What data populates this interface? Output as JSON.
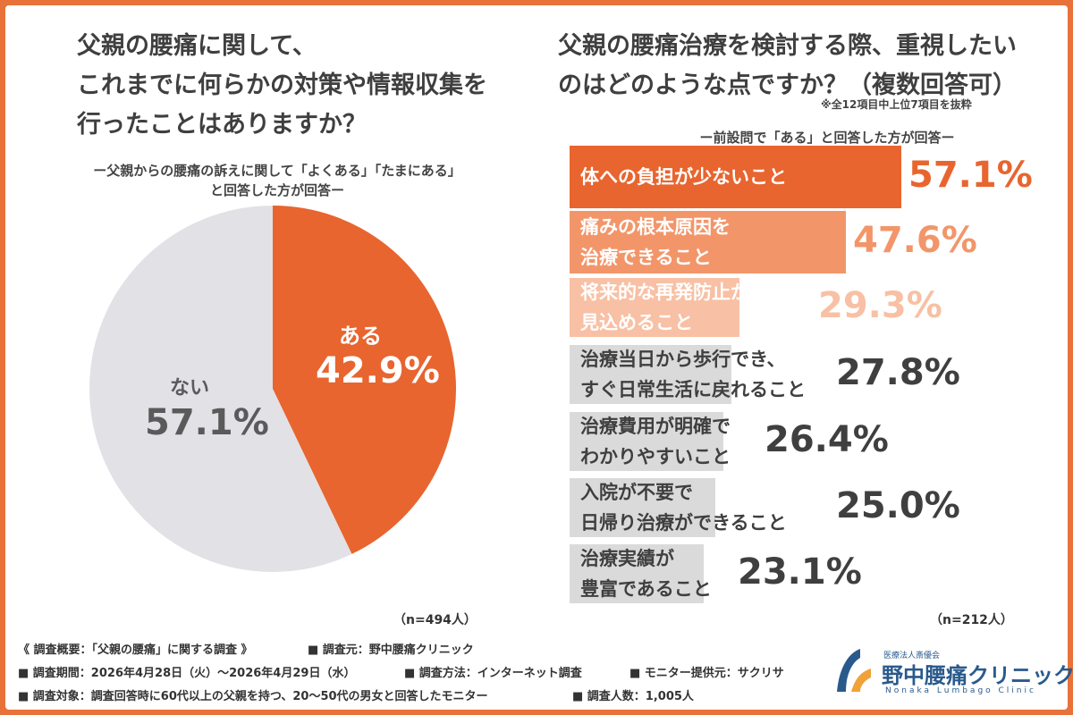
{
  "colors": {
    "accent": "#e8652f",
    "orange_mid": "#f2966a",
    "orange_light": "#f8c0a4",
    "gray_bar": "#dadada",
    "pie_gray": "#e2e1e6",
    "text_dark": "#3f3f3f",
    "logo_blue": "#2a5a8c"
  },
  "left": {
    "title_lines": [
      "父親の腰痛に関して、",
      "これまでに何らかの対策や情報収集を",
      "行ったことはありますか？"
    ],
    "sub_lines": [
      "ー父親からの腰痛の訴えに関して「よくある」「たまにある」",
      "と回答した方が回答ー"
    ],
    "n": "（n=494人）"
  },
  "right": {
    "title_lines": [
      "父親の腰痛治療を検討する際、重視したい",
      "のはどのような点ですか？（複数回答可）"
    ],
    "note": "※全12項目中上位7項目を抜粋",
    "sub": "ー前設問で「ある」と回答した方が回答ー",
    "n": "（n=212人）"
  },
  "chart_data": [
    {
      "type": "pie",
      "slices": [
        {
          "label": "ある",
          "value": 42.9,
          "value_label": "42.9%",
          "color": "#e8652f"
        },
        {
          "label": "ない",
          "value": 57.1,
          "value_label": "57.1%",
          "color": "#e2e1e6"
        }
      ]
    },
    {
      "type": "bar",
      "orientation": "horizontal",
      "categories": [
        [
          "体への負担が少ないこと"
        ],
        [
          "痛みの根本原因を",
          "治療できること"
        ],
        [
          "将来的な再発防止が",
          "見込めること"
        ],
        [
          "治療当日から歩行でき、",
          "すぐ日常生活に戻れること"
        ],
        [
          "治療費用が明確で",
          "わかりやすいこと"
        ],
        [
          "入院が不要で",
          "日帰り治療ができること"
        ],
        [
          "治療実績が",
          "豊富であること"
        ]
      ],
      "values": [
        57.1,
        47.6,
        29.3,
        27.8,
        26.4,
        25.0,
        23.1
      ],
      "value_labels": [
        "57.1%",
        "47.6%",
        "29.3%",
        "27.8%",
        "26.4%",
        "25.0%",
        "23.1%"
      ]
    }
  ],
  "footer": {
    "line1_a": "《 調査概要：「父親の腰痛」に関する調査 》",
    "line1_b": "■ 調査元：野中腰痛クリニック",
    "line2_a": "■ 調査期間：2026年4月28日（火）～2026年4月29日（水）",
    "line2_b": "■ 調査方法：インターネット調査",
    "line2_c": "■ モニター提供元：サクリサ",
    "line3_a": "■ 調査対象：調査回答時に60代以上の父親を持つ、20～50代の男女と回答したモニター",
    "line3_b": "■ 調査人数：1,005人"
  },
  "logo": {
    "org": "医療法人斎優会",
    "name": "野中腰痛クリニック",
    "roman": "Nonaka Lumbago Clinic",
    "icon": "clinic-logo-icon"
  }
}
